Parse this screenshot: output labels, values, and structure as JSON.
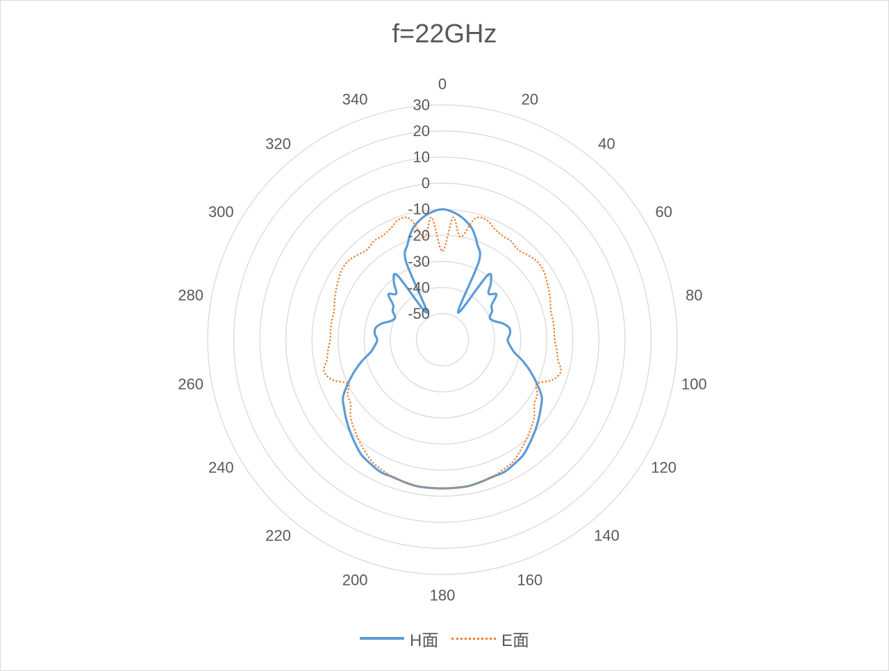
{
  "chart_data": {
    "type": "line",
    "coordinate_system": "polar",
    "title": "f=22GHz",
    "angle_ticks": [
      0,
      20,
      40,
      60,
      80,
      100,
      120,
      140,
      160,
      180,
      200,
      220,
      240,
      260,
      280,
      300,
      320,
      340
    ],
    "radial_ticks": [
      -50,
      -40,
      -30,
      -20,
      -10,
      0,
      10,
      20,
      30
    ],
    "rlim": [
      -60,
      30
    ],
    "grid": true,
    "legend_position": "bottom",
    "series": [
      {
        "name": "H面",
        "color": "#5b9bd5",
        "style": "solid",
        "theta": [
          0,
          5,
          10,
          15,
          20,
          25,
          30,
          35,
          40,
          45,
          50,
          55,
          60,
          65,
          70,
          75,
          80,
          85,
          90,
          95,
          100,
          105,
          110,
          115,
          120,
          125,
          130,
          135,
          140,
          145,
          150,
          155,
          160,
          165,
          170,
          175,
          180,
          185,
          190,
          195,
          200,
          205,
          210,
          215,
          220,
          225,
          230,
          235,
          240,
          245,
          250,
          255,
          260,
          265,
          270,
          275,
          280,
          285,
          290,
          295,
          300,
          305,
          310,
          315,
          320,
          325,
          330,
          335,
          340,
          345,
          350,
          355
        ],
        "r": [
          -10,
          -11,
          -13,
          -16,
          -21,
          -27,
          -48,
          -30,
          -31,
          -35,
          -33,
          -37,
          -38,
          -40,
          -39,
          -36,
          -34,
          -34,
          -35,
          -34,
          -32,
          -28,
          -24,
          -20,
          -16,
          -14,
          -12,
          -10,
          -8,
          -6,
          -5,
          -4,
          -4,
          -3.5,
          -3,
          -3,
          -3,
          -3,
          -3,
          -3.5,
          -4,
          -4,
          -5,
          -6,
          -8,
          -10,
          -12,
          -14,
          -16,
          -20,
          -24,
          -28,
          -32,
          -34,
          -35,
          -34,
          -34,
          -36,
          -39,
          -40,
          -38,
          -37,
          -33,
          -35,
          -31,
          -30,
          -48,
          -27,
          -21,
          -16,
          -13,
          -11
        ]
      },
      {
        "name": "E面",
        "color": "#ed7d31",
        "style": "dotted",
        "theta": [
          0,
          5,
          10,
          15,
          20,
          25,
          30,
          35,
          40,
          45,
          50,
          55,
          60,
          65,
          70,
          75,
          80,
          85,
          90,
          95,
          100,
          105,
          110,
          115,
          120,
          125,
          130,
          135,
          140,
          145,
          150,
          155,
          160,
          165,
          170,
          175,
          180,
          185,
          190,
          195,
          200,
          205,
          210,
          215,
          220,
          225,
          230,
          235,
          240,
          245,
          250,
          255,
          260,
          265,
          270,
          275,
          280,
          285,
          290,
          295,
          300,
          305,
          310,
          315,
          320,
          325,
          330,
          335,
          340,
          345,
          350,
          355
        ],
        "r": [
          -26,
          -13,
          -20,
          -12,
          -11,
          -13,
          -14,
          -14,
          -15,
          -14,
          -13,
          -13,
          -14,
          -15,
          -16,
          -17,
          -17,
          -17,
          -17,
          -16,
          -15,
          -13,
          -15,
          -20,
          -18,
          -17,
          -14,
          -12,
          -10,
          -8,
          -6,
          -5,
          -4,
          -3.5,
          -3,
          -3,
          -3,
          -3,
          -3,
          -3.5,
          -4,
          -5,
          -6,
          -8,
          -10,
          -12,
          -14,
          -17,
          -18,
          -20,
          -15,
          -13,
          -15,
          -16,
          -17,
          -17,
          -17,
          -17,
          -16,
          -15,
          -14,
          -13,
          -13,
          -14,
          -15,
          -14,
          -14,
          -13,
          -11,
          -12,
          -20,
          -13
        ]
      }
    ]
  }
}
